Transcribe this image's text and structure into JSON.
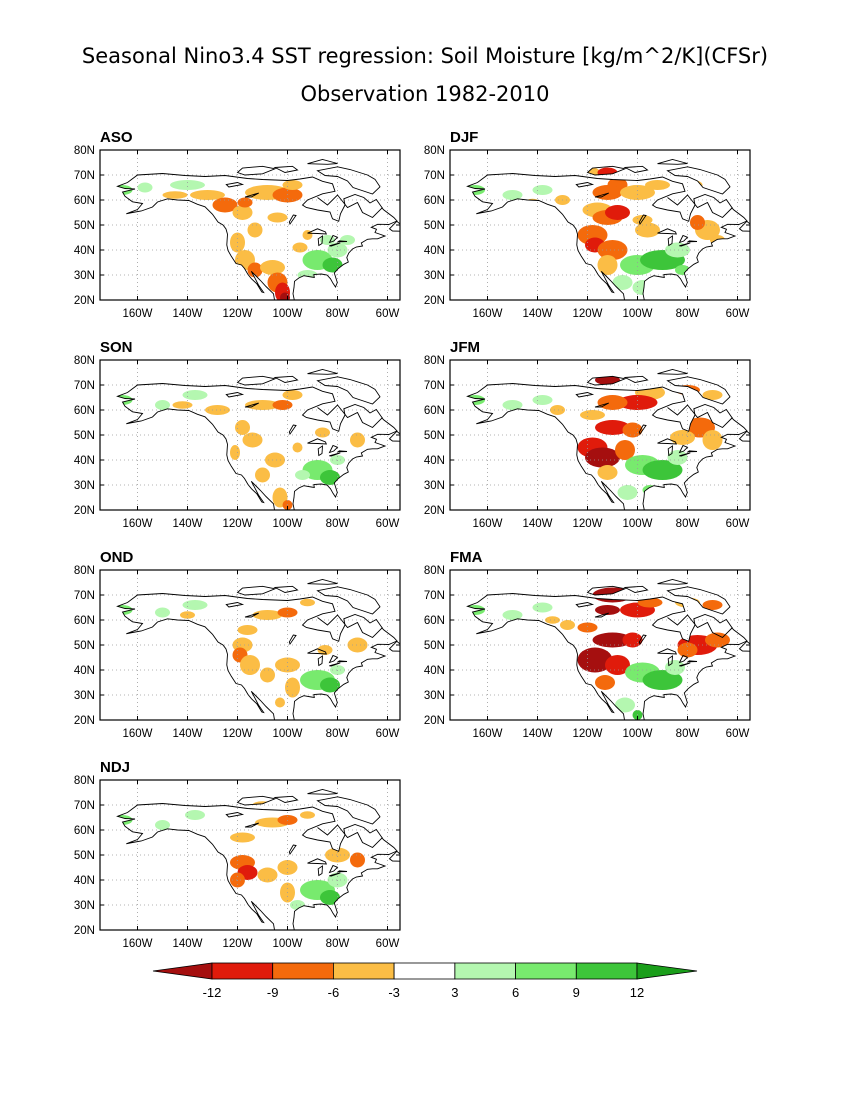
{
  "title": "Seasonal Nino3.4 SST regression: Soil Moisture [kg/m^2/K](CFSr)",
  "subtitle": "Observation 1982-2010",
  "lat_ticks": [
    "80N",
    "70N",
    "60N",
    "50N",
    "40N",
    "30N",
    "20N"
  ],
  "lon_ticks": [
    "160W",
    "140W",
    "120W",
    "100W",
    "80W",
    "60W"
  ],
  "panels": [
    {
      "label": "ASO",
      "id": "ASO"
    },
    {
      "label": "DJF",
      "id": "DJF"
    },
    {
      "label": "SON",
      "id": "SON"
    },
    {
      "label": "JFM",
      "id": "JFM"
    },
    {
      "label": "OND",
      "id": "OND"
    },
    {
      "label": "FMA",
      "id": "FMA"
    },
    {
      "label": "NDJ",
      "id": "NDJ"
    }
  ],
  "colorbar": {
    "labels": [
      "-12",
      "-9",
      "-6",
      "-3",
      "3",
      "6",
      "9",
      "12"
    ],
    "colors": [
      "#a50f0f",
      "#e01b0b",
      "#f46a0c",
      "#fbbd45",
      "#ffffff",
      "#b4f7b0",
      "#78ea6e",
      "#3dc53a",
      "#1a9e1a"
    ]
  },
  "chart_data": {
    "type": "heatmap",
    "variable": "Soil Moisture regression on Nino3.4 SST",
    "units": "kg/m^2/K",
    "dataset": "CFSr",
    "period": "1982-2010",
    "seasons": [
      "ASO",
      "SON",
      "OND",
      "NDJ",
      "DJF",
      "JFM",
      "FMA"
    ],
    "lon_range": [
      "175W",
      "55W"
    ],
    "lat_range": [
      "20N",
      "80N"
    ],
    "contour_levels": [
      -12,
      -9,
      -6,
      -3,
      3,
      6,
      9,
      12
    ],
    "grid": "dotted"
  }
}
